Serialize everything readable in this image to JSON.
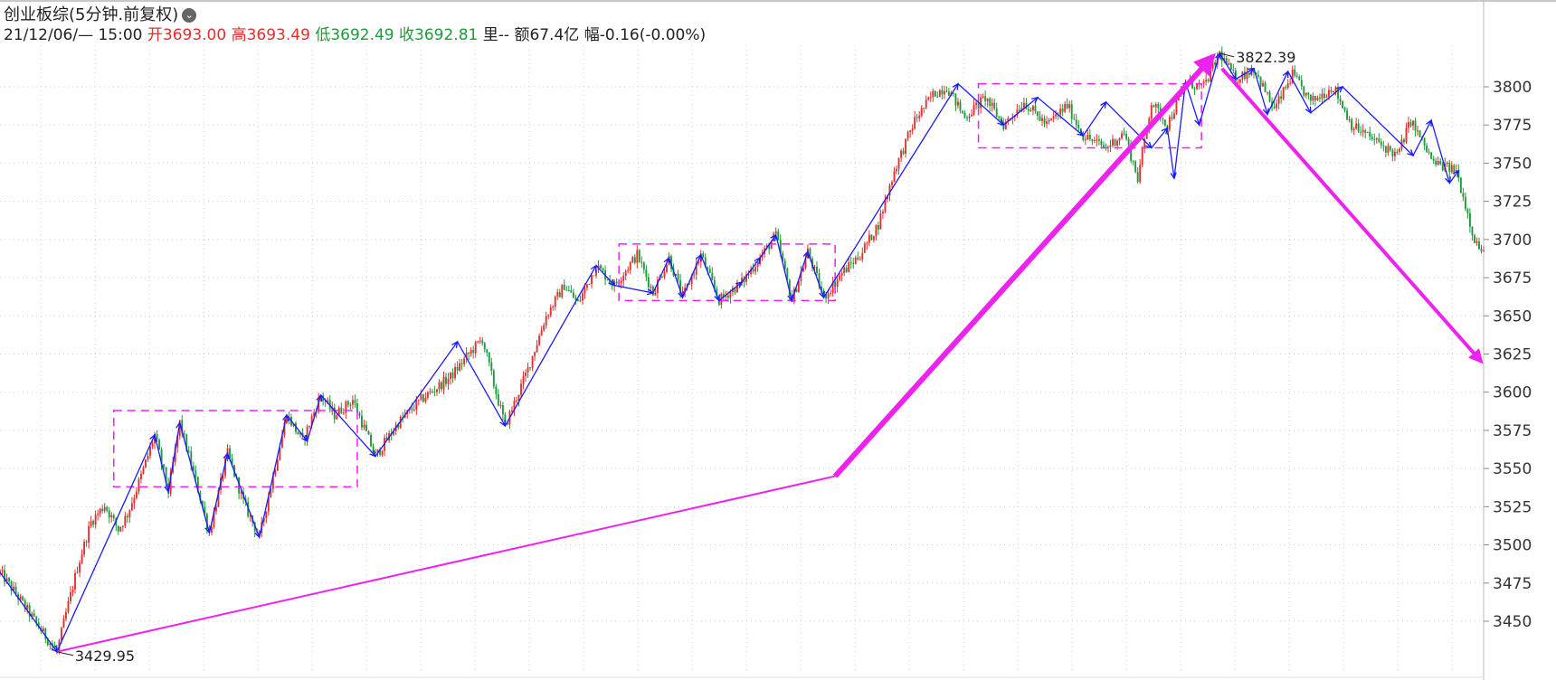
{
  "header": {
    "title": "创业板综(5分钟.前复权)",
    "info": {
      "datetime": "21/12/06/— 15:00",
      "open_label": "开",
      "open": "3693.00",
      "high_label": "高",
      "high": "3693.49",
      "low_label": "低",
      "low": "3692.49",
      "close_label": "收",
      "close": "3692.81",
      "volume_label": "里",
      "volume": "--",
      "amount_label": "额",
      "amount": "67.4亿",
      "change_label": "幅",
      "change": "-0.16(-0.00%)"
    }
  },
  "chart_data": {
    "type": "candlestick",
    "title": "创业板综(5分钟.前复权)",
    "yaxis": {
      "position": "right",
      "ticks": [
        3450,
        3475,
        3500,
        3525,
        3550,
        3575,
        3600,
        3625,
        3650,
        3675,
        3700,
        3725,
        3750,
        3775,
        3800
      ],
      "range": [
        3415,
        3830
      ]
    },
    "grid": "dotted",
    "annotations": {
      "low_label": "3429.95",
      "high_label": "3822.39"
    },
    "price_path": [
      [
        0,
        3482
      ],
      [
        6,
        3470
      ],
      [
        13,
        3455
      ],
      [
        20,
        3440
      ],
      [
        25,
        3430
      ],
      [
        29,
        3455
      ],
      [
        34,
        3485
      ],
      [
        40,
        3515
      ],
      [
        46,
        3526
      ],
      [
        52,
        3510
      ],
      [
        56,
        3520
      ],
      [
        62,
        3545
      ],
      [
        68,
        3572
      ],
      [
        74,
        3535
      ],
      [
        79,
        3580
      ],
      [
        86,
        3542
      ],
      [
        92,
        3508
      ],
      [
        100,
        3560
      ],
      [
        107,
        3528
      ],
      [
        114,
        3505
      ],
      [
        120,
        3545
      ],
      [
        126,
        3585
      ],
      [
        133,
        3568
      ],
      [
        141,
        3598
      ],
      [
        147,
        3585
      ],
      [
        155,
        3595
      ],
      [
        165,
        3558
      ],
      [
        175,
        3580
      ],
      [
        185,
        3595
      ],
      [
        198,
        3610
      ],
      [
        206,
        3625
      ],
      [
        212,
        3635
      ],
      [
        217,
        3605
      ],
      [
        222,
        3578
      ],
      [
        232,
        3615
      ],
      [
        240,
        3650
      ],
      [
        248,
        3670
      ],
      [
        254,
        3658
      ],
      [
        262,
        3683
      ],
      [
        270,
        3670
      ],
      [
        280,
        3690
      ],
      [
        287,
        3665
      ],
      [
        294,
        3688
      ],
      [
        300,
        3662
      ],
      [
        308,
        3690
      ],
      [
        316,
        3660
      ],
      [
        326,
        3672
      ],
      [
        334,
        3688
      ],
      [
        341,
        3703
      ],
      [
        348,
        3660
      ],
      [
        355,
        3692
      ],
      [
        362,
        3662
      ],
      [
        370,
        3678
      ],
      [
        378,
        3690
      ],
      [
        386,
        3710
      ],
      [
        393,
        3745
      ],
      [
        402,
        3778
      ],
      [
        410,
        3795
      ],
      [
        416,
        3800
      ],
      [
        424,
        3780
      ],
      [
        433,
        3793
      ],
      [
        441,
        3775
      ],
      [
        450,
        3790
      ],
      [
        460,
        3775
      ],
      [
        469,
        3788
      ],
      [
        476,
        3768
      ],
      [
        486,
        3760
      ],
      [
        494,
        3770
      ],
      [
        500,
        3740
      ],
      [
        506,
        3790
      ],
      [
        513,
        3775
      ],
      [
        521,
        3802
      ],
      [
        529,
        3800
      ],
      [
        536,
        3822
      ],
      [
        543,
        3805
      ],
      [
        551,
        3812
      ],
      [
        560,
        3785
      ],
      [
        568,
        3808
      ],
      [
        576,
        3790
      ],
      [
        586,
        3800
      ],
      [
        594,
        3775
      ],
      [
        604,
        3765
      ],
      [
        614,
        3755
      ],
      [
        620,
        3778
      ],
      [
        630,
        3750
      ],
      [
        640,
        3745
      ],
      [
        648,
        3700
      ],
      [
        652,
        3690
      ]
    ],
    "wave_lines": [
      [
        [
          0,
          3482
        ],
        [
          25,
          3430
        ],
        [
          68,
          3572
        ],
        [
          74,
          3535
        ],
        [
          79,
          3580
        ],
        [
          92,
          3508
        ],
        [
          100,
          3560
        ],
        [
          114,
          3505
        ],
        [
          126,
          3585
        ],
        [
          135,
          3568
        ],
        [
          141,
          3598
        ],
        [
          165,
          3558
        ],
        [
          201,
          3633
        ],
        [
          222,
          3578
        ],
        [
          262,
          3683
        ],
        [
          270,
          3670
        ],
        [
          287,
          3665
        ],
        [
          294,
          3688
        ],
        [
          300,
          3662
        ],
        [
          308,
          3690
        ],
        [
          316,
          3660
        ],
        [
          326,
          3672
        ],
        [
          334,
          3688
        ],
        [
          341,
          3703
        ],
        [
          348,
          3660
        ],
        [
          355,
          3692
        ],
        [
          362,
          3662
        ],
        [
          421,
          3802
        ],
        [
          441,
          3775
        ],
        [
          456,
          3793
        ],
        [
          476,
          3768
        ],
        [
          486,
          3790
        ],
        [
          506,
          3760
        ],
        [
          513,
          3773
        ],
        [
          516,
          3740
        ],
        [
          521,
          3803
        ],
        [
          527,
          3775
        ],
        [
          536,
          3822
        ],
        [
          543,
          3805
        ],
        [
          551,
          3812
        ],
        [
          557,
          3782
        ],
        [
          566,
          3810
        ],
        [
          576,
          3783
        ],
        [
          590,
          3800
        ],
        [
          621,
          3755
        ],
        [
          629,
          3778
        ],
        [
          637,
          3737
        ],
        [
          641,
          3745
        ]
      ]
    ],
    "boxes": [
      {
        "x": [
          50,
          157
        ],
        "y": [
          3538,
          3588
        ]
      },
      {
        "x": [
          272,
          367
        ],
        "y": [
          3660,
          3697
        ]
      },
      {
        "x": [
          430,
          528
        ],
        "y": [
          3760,
          3802
        ]
      }
    ],
    "trend_arrows": [
      {
        "from": [
          25,
          3430
        ],
        "to": [
          533,
          3820
        ],
        "style": "magenta, thick, arrowhead"
      },
      {
        "from": [
          537,
          3812
        ],
        "to": [
          651,
          3620
        ],
        "style": "magenta, thick, arrowhead"
      }
    ],
    "colors": {
      "up": "#e03030",
      "down": "#1e9a3a",
      "wave": "#1a1aff",
      "trend": "#ee22ee",
      "box": "#ee22ee"
    }
  }
}
